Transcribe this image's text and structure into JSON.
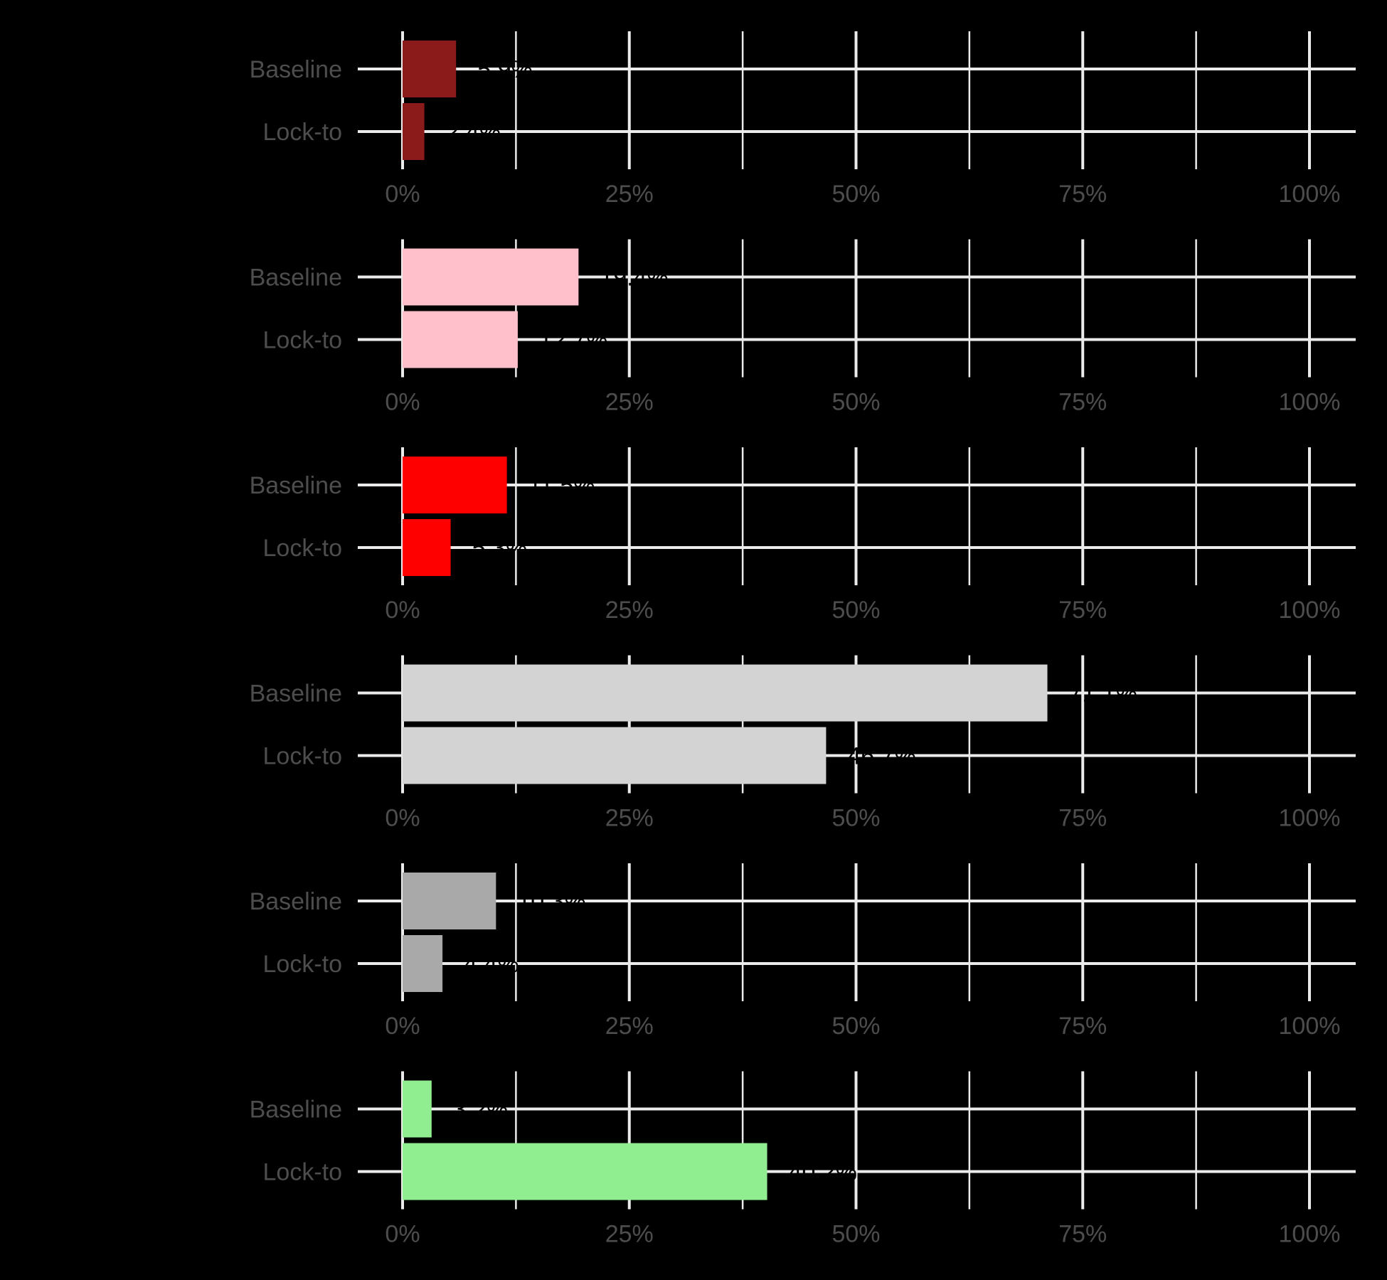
{
  "chart_data": [
    {
      "type": "bar",
      "orientation": "horizontal",
      "color": "#8B1A1A",
      "categories": [
        "Baseline",
        "Lock-to"
      ],
      "values": [
        5.9,
        2.4
      ],
      "data_labels": [
        "5.9%",
        "2.4%"
      ],
      "xlim": [
        0,
        100
      ],
      "x_ticks": [
        "0%",
        "25%",
        "50%",
        "75%",
        "100%"
      ],
      "grid": true
    },
    {
      "type": "bar",
      "orientation": "horizontal",
      "color": "#FFC0CB",
      "categories": [
        "Baseline",
        "Lock-to"
      ],
      "values": [
        19.4,
        12.7
      ],
      "data_labels": [
        "19.4%",
        "12.7%"
      ],
      "xlim": [
        0,
        100
      ],
      "x_ticks": [
        "0%",
        "25%",
        "50%",
        "75%",
        "100%"
      ],
      "grid": true
    },
    {
      "type": "bar",
      "orientation": "horizontal",
      "color": "#FF0000",
      "categories": [
        "Baseline",
        "Lock-to"
      ],
      "values": [
        11.5,
        5.3
      ],
      "data_labels": [
        "11.5%",
        "5.3%"
      ],
      "xlim": [
        0,
        100
      ],
      "x_ticks": [
        "0%",
        "25%",
        "50%",
        "75%",
        "100%"
      ],
      "grid": true
    },
    {
      "type": "bar",
      "orientation": "horizontal",
      "color": "#D3D3D3",
      "categories": [
        "Baseline",
        "Lock-to"
      ],
      "values": [
        71.1,
        46.7
      ],
      "data_labels": [
        "71.1%",
        "46.7%"
      ],
      "xlim": [
        0,
        100
      ],
      "x_ticks": [
        "0%",
        "25%",
        "50%",
        "75%",
        "100%"
      ],
      "grid": true
    },
    {
      "type": "bar",
      "orientation": "horizontal",
      "color": "#A9A9A9",
      "categories": [
        "Baseline",
        "Lock-to"
      ],
      "values": [
        10.3,
        4.4
      ],
      "data_labels": [
        "10.3%",
        "4.4%"
      ],
      "xlim": [
        0,
        100
      ],
      "x_ticks": [
        "0%",
        "25%",
        "50%",
        "75%",
        "100%"
      ],
      "grid": true
    },
    {
      "type": "bar",
      "orientation": "horizontal",
      "color": "#90EE90",
      "categories": [
        "Baseline",
        "Lock-to"
      ],
      "values": [
        3.2,
        40.2
      ],
      "data_labels": [
        "3.2%",
        "40.2%"
      ],
      "xlim": [
        0,
        100
      ],
      "x_ticks": [
        "0%",
        "25%",
        "50%",
        "75%",
        "100%"
      ],
      "grid": true
    }
  ]
}
